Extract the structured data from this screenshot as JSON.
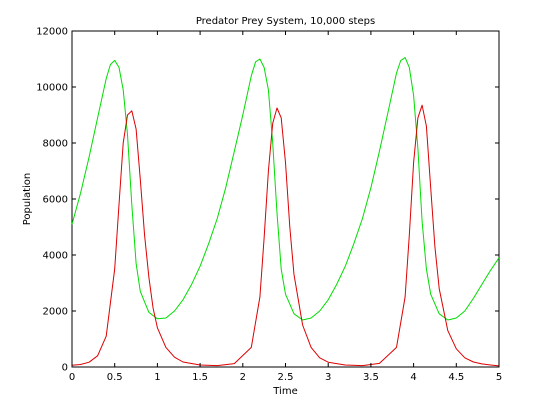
{
  "chart_data": {
    "type": "line",
    "title": "Predator Prey System, 10,000 steps",
    "xlabel": "Time",
    "ylabel": "Population",
    "xlim": [
      0,
      5
    ],
    "ylim": [
      0,
      12000
    ],
    "x_ticks": [
      0,
      0.5,
      1,
      1.5,
      2,
      2.5,
      3,
      3.5,
      4,
      4.5,
      5
    ],
    "x_tick_labels": [
      "0",
      "0.5",
      "1",
      "1.5",
      "2",
      "2.5",
      "3",
      "3.5",
      "4",
      "4.5",
      "5"
    ],
    "y_ticks": [
      0,
      2000,
      4000,
      6000,
      8000,
      10000,
      12000
    ],
    "y_tick_labels": [
      "0",
      "2000",
      "4000",
      "6000",
      "8000",
      "10000",
      "12000"
    ],
    "grid": false,
    "legend": "none",
    "series": [
      {
        "color": "#00dd00",
        "x": [
          0,
          0.1,
          0.2,
          0.3,
          0.4,
          0.45,
          0.5,
          0.55,
          0.6,
          0.65,
          0.7,
          0.75,
          0.8,
          0.9,
          1.0,
          1.1,
          1.2,
          1.3,
          1.4,
          1.5,
          1.6,
          1.7,
          1.8,
          1.9,
          2.0,
          2.1,
          2.15,
          2.2,
          2.25,
          2.3,
          2.35,
          2.4,
          2.45,
          2.5,
          2.6,
          2.7,
          2.8,
          2.9,
          3.0,
          3.1,
          3.2,
          3.3,
          3.4,
          3.5,
          3.6,
          3.7,
          3.8,
          3.85,
          3.9,
          3.95,
          4.0,
          4.05,
          4.1,
          4.15,
          4.2,
          4.3,
          4.4,
          4.5,
          4.6,
          4.7,
          4.8,
          4.9,
          5.0
        ],
        "y": [
          5100,
          6200,
          7500,
          8900,
          10300,
          10800,
          10950,
          10700,
          9900,
          8300,
          5800,
          3700,
          2700,
          1950,
          1720,
          1750,
          2000,
          2400,
          2950,
          3600,
          4400,
          5300,
          6400,
          7700,
          9000,
          10400,
          10900,
          11000,
          10700,
          9900,
          8000,
          5500,
          3500,
          2600,
          1900,
          1680,
          1750,
          2000,
          2400,
          2950,
          3600,
          4400,
          5300,
          6400,
          7700,
          9100,
          10500,
          10950,
          11050,
          10700,
          9700,
          7800,
          5200,
          3500,
          2600,
          1900,
          1680,
          1750,
          2000,
          2450,
          2950,
          3450,
          3900
        ]
      },
      {
        "color": "#dd0000",
        "x": [
          0,
          0.1,
          0.2,
          0.3,
          0.4,
          0.5,
          0.55,
          0.6,
          0.65,
          0.7,
          0.75,
          0.8,
          0.85,
          0.9,
          0.95,
          1.0,
          1.1,
          1.2,
          1.3,
          1.5,
          1.7,
          1.9,
          2.1,
          2.2,
          2.25,
          2.3,
          2.35,
          2.4,
          2.45,
          2.5,
          2.55,
          2.6,
          2.7,
          2.8,
          2.9,
          3.0,
          3.2,
          3.4,
          3.6,
          3.8,
          3.9,
          3.95,
          4.0,
          4.05,
          4.1,
          4.15,
          4.2,
          4.25,
          4.3,
          4.4,
          4.5,
          4.6,
          4.7,
          4.8,
          4.9,
          5.0
        ],
        "y": [
          60,
          90,
          170,
          400,
          1100,
          3500,
          5800,
          8000,
          9000,
          9150,
          8500,
          6700,
          4700,
          3200,
          2100,
          1400,
          700,
          350,
          180,
          70,
          50,
          120,
          700,
          2500,
          4600,
          7000,
          8700,
          9250,
          8900,
          7300,
          5000,
          3300,
          1500,
          700,
          330,
          170,
          70,
          50,
          130,
          700,
          2500,
          4700,
          7300,
          8900,
          9350,
          8600,
          6400,
          4300,
          2800,
          1300,
          650,
          330,
          180,
          110,
          70,
          40
        ]
      }
    ]
  }
}
